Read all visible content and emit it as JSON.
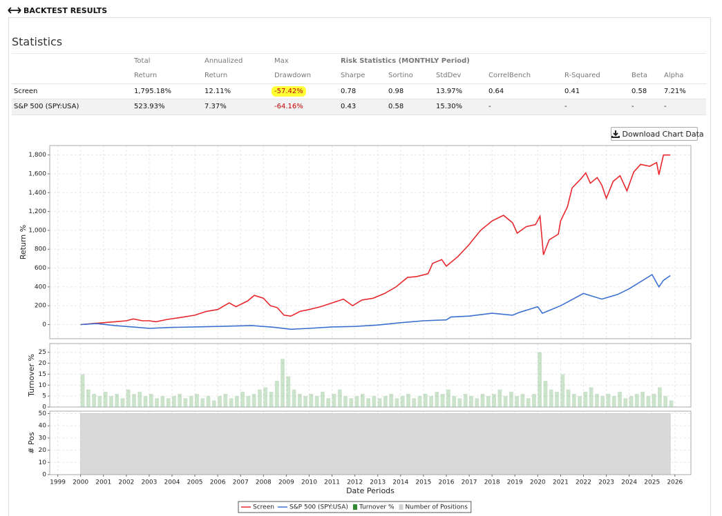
{
  "header": {
    "title": "BACKTEST RESULTS"
  },
  "statistics": {
    "title": "Statistics",
    "header_top": [
      "Total",
      "Annualized",
      "Max",
      "Risk Statistics (MONTHLY Period)"
    ],
    "header": [
      "Return",
      "Return",
      "Drawdown",
      "Sharpe",
      "Sortino",
      "StdDev",
      "CorrelBench",
      "R-Squared",
      "Beta",
      "Alpha"
    ],
    "rows": [
      [
        "Screen",
        "1,795.18%",
        "12.11%",
        "-57.42%",
        "0.78",
        "0.98",
        "13.97%",
        "0.64",
        "0.41",
        "0.58",
        "7.21%"
      ],
      [
        "S&P 500 (SPY:USA)",
        "523.93%",
        "7.37%",
        "-64.16%",
        "0.43",
        "0.58",
        "15.30%",
        "-",
        "-",
        "-",
        "-"
      ]
    ]
  },
  "button": "Download Chart Data",
  "chart_data": [
    {
      "type": "line",
      "ylabel": "Return %",
      "xlim": [
        1998.65,
        2026.7
      ],
      "ylim": [
        -150,
        1900
      ],
      "yticks": [
        0,
        200,
        400,
        600,
        800,
        {
          "value": 1000,
          "label": "1,000"
        },
        {
          "value": 1200,
          "label": "1,200"
        },
        {
          "value": 1400,
          "label": "1,400"
        },
        {
          "value": 1600,
          "label": "1,600"
        },
        {
          "value": 1800,
          "label": "1,800"
        }
      ],
      "grid": true,
      "series": [
        {
          "name": "Screen",
          "color": "#e8262b",
          "x": [
            2000.0,
            2000.5,
            2001.0,
            2001.5,
            2002.0,
            2002.3,
            2002.7,
            2003.0,
            2003.3,
            2003.8,
            2004.5,
            2005.0,
            2005.5,
            2006.0,
            2006.5,
            2006.8,
            2007.3,
            2007.6,
            2008.0,
            2008.3,
            2008.6,
            2008.9,
            2009.2,
            2009.6,
            2010.0,
            2010.5,
            2011.0,
            2011.5,
            2011.9,
            2012.3,
            2012.8,
            2013.3,
            2013.8,
            2014.3,
            2014.7,
            2015.2,
            2015.4,
            2015.8,
            2016.0,
            2016.5,
            2017.0,
            2017.5,
            2018.0,
            2018.5,
            2018.9,
            2019.1,
            2019.5,
            2019.9,
            2020.1,
            2020.25,
            2020.5,
            2020.9,
            2021.0,
            2021.3,
            2021.5,
            2021.9,
            2022.1,
            2022.3,
            2022.6,
            2022.8,
            2023.0,
            2023.3,
            2023.6,
            2023.9,
            2024.2,
            2024.5,
            2024.9,
            2025.2,
            2025.3,
            2025.5,
            2025.8
          ],
          "values": [
            0,
            10,
            20,
            30,
            40,
            60,
            40,
            40,
            30,
            55,
            80,
            100,
            140,
            160,
            230,
            190,
            250,
            310,
            280,
            200,
            180,
            100,
            90,
            140,
            160,
            190,
            230,
            270,
            200,
            260,
            280,
            330,
            400,
            500,
            510,
            540,
            650,
            690,
            620,
            720,
            850,
            1000,
            1100,
            1160,
            1080,
            970,
            1040,
            1060,
            1150,
            740,
            900,
            960,
            1100,
            1250,
            1450,
            1550,
            1610,
            1500,
            1560,
            1480,
            1340,
            1520,
            1580,
            1420,
            1620,
            1700,
            1680,
            1720,
            1590,
            1800,
            1800
          ]
        },
        {
          "name": "S&P 500 (SPY:USA)",
          "color": "#3a6fd1",
          "x": [
            2000.0,
            2000.7,
            2001.5,
            2002.5,
            2003.0,
            2004.0,
            2005.0,
            2006.0,
            2007.5,
            2008.5,
            2009.2,
            2010.0,
            2011.0,
            2012.0,
            2013.0,
            2014.0,
            2015.0,
            2016.0,
            2016.2,
            2017.0,
            2018.0,
            2018.9,
            2019.2,
            2020.0,
            2020.2,
            2021.0,
            2022.0,
            2022.8,
            2023.5,
            2024.0,
            2025.0,
            2025.3,
            2025.5,
            2025.8
          ],
          "values": [
            0,
            10,
            -10,
            -30,
            -40,
            -30,
            -25,
            -20,
            -10,
            -30,
            -50,
            -40,
            -25,
            -20,
            -5,
            20,
            40,
            50,
            80,
            90,
            120,
            100,
            130,
            190,
            120,
            200,
            330,
            270,
            320,
            380,
            530,
            400,
            470,
            520
          ]
        }
      ]
    },
    {
      "type": "bar",
      "ylabel": "Turnover %",
      "xlim": [
        1998.65,
        2026.7
      ],
      "ylim": [
        0,
        29
      ],
      "yticks": [
        0,
        5,
        10,
        15,
        20,
        25
      ],
      "grid": true,
      "x": [
        2000,
        2000.25,
        2000.5,
        2000.75,
        2001,
        2001.25,
        2001.5,
        2001.75,
        2002,
        2002.25,
        2002.5,
        2002.75,
        2003,
        2003.25,
        2003.5,
        2003.75,
        2004,
        2004.25,
        2004.5,
        2004.75,
        2005,
        2005.25,
        2005.5,
        2005.75,
        2006,
        2006.25,
        2006.5,
        2006.75,
        2007,
        2007.25,
        2007.5,
        2007.75,
        2008,
        2008.25,
        2008.5,
        2008.75,
        2009,
        2009.25,
        2009.5,
        2009.75,
        2010,
        2010.25,
        2010.5,
        2010.75,
        2011,
        2011.25,
        2011.5,
        2011.75,
        2012,
        2012.25,
        2012.5,
        2012.75,
        2013,
        2013.25,
        2013.5,
        2013.75,
        2014,
        2014.25,
        2014.5,
        2014.75,
        2015,
        2015.25,
        2015.5,
        2015.75,
        2016,
        2016.25,
        2016.5,
        2016.75,
        2017,
        2017.25,
        2017.5,
        2017.75,
        2018,
        2018.25,
        2018.5,
        2018.75,
        2019,
        2019.25,
        2019.5,
        2019.75,
        2020,
        2020.25,
        2020.5,
        2020.75,
        2021,
        2021.25,
        2021.5,
        2021.75,
        2022,
        2022.25,
        2022.5,
        2022.75,
        2023,
        2023.25,
        2023.5,
        2023.75,
        2024,
        2024.25,
        2024.5,
        2024.75,
        2025,
        2025.25,
        2025.5,
        2025.75
      ],
      "series": [
        {
          "name": "Turnover %",
          "color": "#2e8b2e",
          "values": [
            15,
            8,
            6,
            5,
            7,
            5,
            6,
            4,
            8,
            6,
            7,
            5,
            6,
            4,
            5,
            4,
            5,
            6,
            4,
            5,
            6,
            4,
            5,
            3,
            5,
            6,
            4,
            5,
            7,
            5,
            6,
            8,
            9,
            7,
            12,
            22,
            14,
            8,
            6,
            5,
            6,
            5,
            7,
            4,
            6,
            8,
            5,
            4,
            5,
            6,
            4,
            5,
            4,
            5,
            6,
            4,
            5,
            6,
            4,
            5,
            6,
            5,
            7,
            6,
            8,
            5,
            4,
            6,
            5,
            4,
            6,
            5,
            6,
            8,
            5,
            7,
            5,
            6,
            4,
            6,
            25,
            12,
            8,
            7,
            15,
            8,
            6,
            5,
            7,
            9,
            6,
            5,
            6,
            5,
            7,
            4,
            5,
            6,
            7,
            5,
            6,
            9,
            5,
            3
          ]
        }
      ]
    },
    {
      "type": "area",
      "ylabel": "# Pos",
      "xlabel": "Date Periods",
      "xlim": [
        1998.65,
        2026.7
      ],
      "ylim": [
        0,
        52
      ],
      "yticks": [
        0,
        10,
        20,
        30,
        40,
        50
      ],
      "grid": true,
      "xticks": [
        1999,
        2000,
        2001,
        2002,
        2003,
        2004,
        2005,
        2006,
        2007,
        2008,
        2009,
        2010,
        2011,
        2012,
        2013,
        2014,
        2015,
        2016,
        2017,
        2018,
        2019,
        2020,
        2021,
        2022,
        2023,
        2024,
        2025,
        2026
      ],
      "legend": "bottom",
      "x": [
        2000,
        2025.8
      ],
      "series": [
        {
          "name": "Number of Positions",
          "color": "#d9d9d9",
          "values": [
            50,
            50
          ]
        }
      ]
    }
  ]
}
